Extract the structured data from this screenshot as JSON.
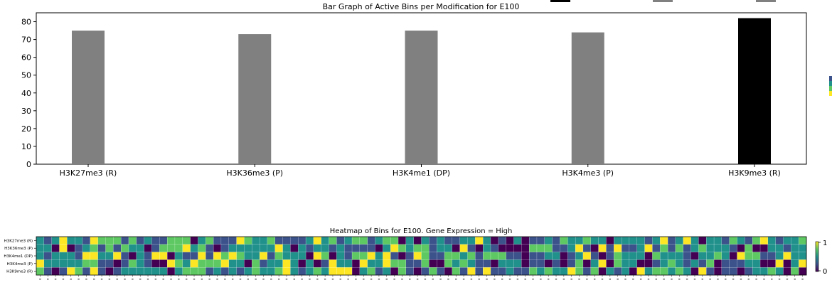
{
  "chart_data": [
    {
      "type": "bar",
      "title": "Bar Graph of Active Bins per Modification for E100",
      "categories": [
        "H3K27me3 (R)",
        "H3K36me3 (P)",
        "H3K4me1 (DP)",
        "H3K4me3 (P)",
        "H3K9me3 (R)"
      ],
      "values": [
        75,
        73,
        75,
        74,
        82
      ],
      "colors": [
        "#808080",
        "#808080",
        "#808080",
        "#808080",
        "#000000"
      ],
      "yticks": [
        0,
        10,
        20,
        30,
        40,
        50,
        60,
        70,
        80
      ],
      "ylim": [
        0,
        85
      ],
      "grid": false
    },
    {
      "type": "heatmap",
      "title": "Heatmap of Bins for E100. Gene Expression = High",
      "rows": [
        "H3K27me3 (R)",
        "H3K36me3 (P)",
        "H3K4me1 (DP)",
        "H3K4me3 (P)",
        "H3K9me3 (R)"
      ],
      "n_columns": 100,
      "value_range": [
        0,
        1
      ],
      "colorbar_ticks": [
        "0",
        "1"
      ],
      "colormap": [
        "#440154",
        "#3b528b",
        "#21918c",
        "#5ec962",
        "#fde725"
      ],
      "note_values": "cell values not individually readable; generated pseudo-randomly in script"
    }
  ]
}
